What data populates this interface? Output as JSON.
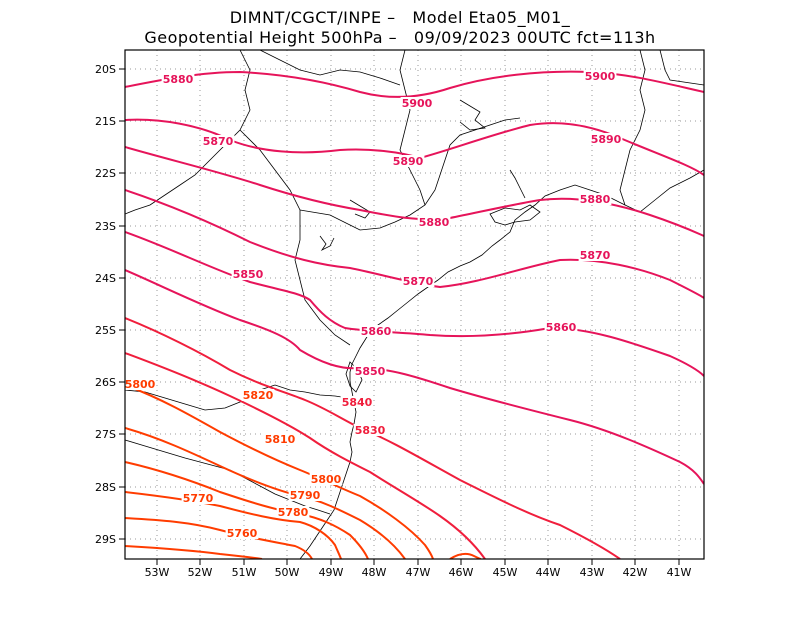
{
  "title_line1": "DIMNT/CGCT/INPE –   Model Eta05_M01_",
  "title_line2": "Geopotential Height 500hPa –   09/09/2023 00UTC fct=113h",
  "lon_ticks": [
    "53W",
    "52W",
    "51W",
    "50W",
    "49W",
    "48W",
    "47W",
    "46W",
    "45W",
    "44W",
    "43W",
    "42W",
    "41W"
  ],
  "lat_ticks": [
    "20S",
    "21S",
    "22S",
    "23S",
    "24S",
    "25S",
    "26S",
    "27S",
    "28S",
    "29S"
  ],
  "contour_labels": [
    "5900",
    "5900",
    "5890",
    "5890",
    "5880",
    "5880",
    "5880",
    "5870",
    "5870",
    "5870",
    "5860",
    "5860",
    "5850",
    "5850",
    "5840",
    "5830",
    "5820",
    "5810",
    "5800",
    "5800",
    "5790",
    "5780",
    "5770",
    "5760"
  ],
  "colors": {
    "high": "#e6145a",
    "mid": "#f01e3c",
    "low": "#ff3c00",
    "grid": "#999999",
    "coast": "#000000"
  }
}
